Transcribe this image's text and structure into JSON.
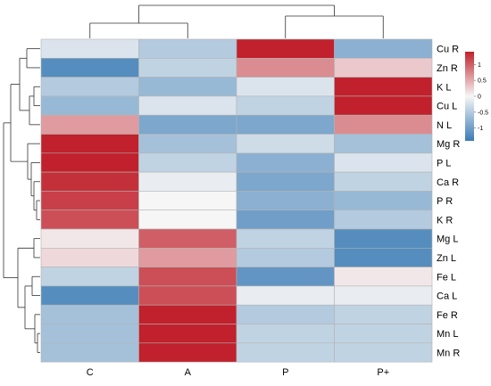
{
  "chart_data": {
    "type": "heatmap",
    "title": "",
    "xlabel": "",
    "ylabel": "",
    "columns": [
      "C",
      "A",
      "P",
      "P+"
    ],
    "rows": [
      "Cu R",
      "Zn R",
      "K L",
      "Cu L",
      "N L",
      "Mg R",
      "P L",
      "Ca R",
      "P R",
      "K R",
      "Mg L",
      "Zn L",
      "Fe L",
      "Ca L",
      "Fe R",
      "Mn L",
      "Mn R"
    ],
    "values": [
      [
        -0.2,
        -0.5,
        1.4,
        -0.8
      ],
      [
        -1.2,
        -0.4,
        0.7,
        0.3
      ],
      [
        -0.5,
        -0.7,
        -0.2,
        1.4
      ],
      [
        -0.7,
        -0.2,
        -0.4,
        1.4
      ],
      [
        0.6,
        -0.9,
        -0.9,
        0.7
      ],
      [
        1.4,
        -0.6,
        -0.3,
        -0.6
      ],
      [
        1.4,
        -0.4,
        -0.8,
        -0.2
      ],
      [
        1.3,
        -0.1,
        -0.9,
        -0.4
      ],
      [
        1.2,
        0.0,
        -0.8,
        -0.7
      ],
      [
        1.1,
        0.0,
        -1.0,
        -0.5
      ],
      [
        0.1,
        1.0,
        -0.4,
        -1.2
      ],
      [
        0.2,
        0.6,
        -0.5,
        -1.2
      ],
      [
        -0.4,
        1.1,
        -1.1,
        0.1
      ],
      [
        -1.2,
        1.1,
        -0.1,
        -0.1
      ],
      [
        -0.6,
        1.4,
        -0.5,
        -0.4
      ],
      [
        -0.6,
        1.4,
        -0.4,
        -0.4
      ],
      [
        -0.6,
        1.4,
        -0.4,
        -0.4
      ]
    ],
    "colorbar": {
      "ticks": [
        "1",
        "0.5",
        "0",
        "-0.5",
        "-1"
      ],
      "tick_values": [
        1,
        0.5,
        0,
        -0.5,
        -1
      ],
      "range": [
        -1.4,
        1.4
      ],
      "colors": {
        "low": "#3a7bb5",
        "mid": "#f6f6f6",
        "high": "#c0212c"
      }
    },
    "legend_placement": "right",
    "grid": false,
    "cell_border_color": "#b3b3b3",
    "dendrograms": {
      "rows": true,
      "columns": true
    }
  }
}
